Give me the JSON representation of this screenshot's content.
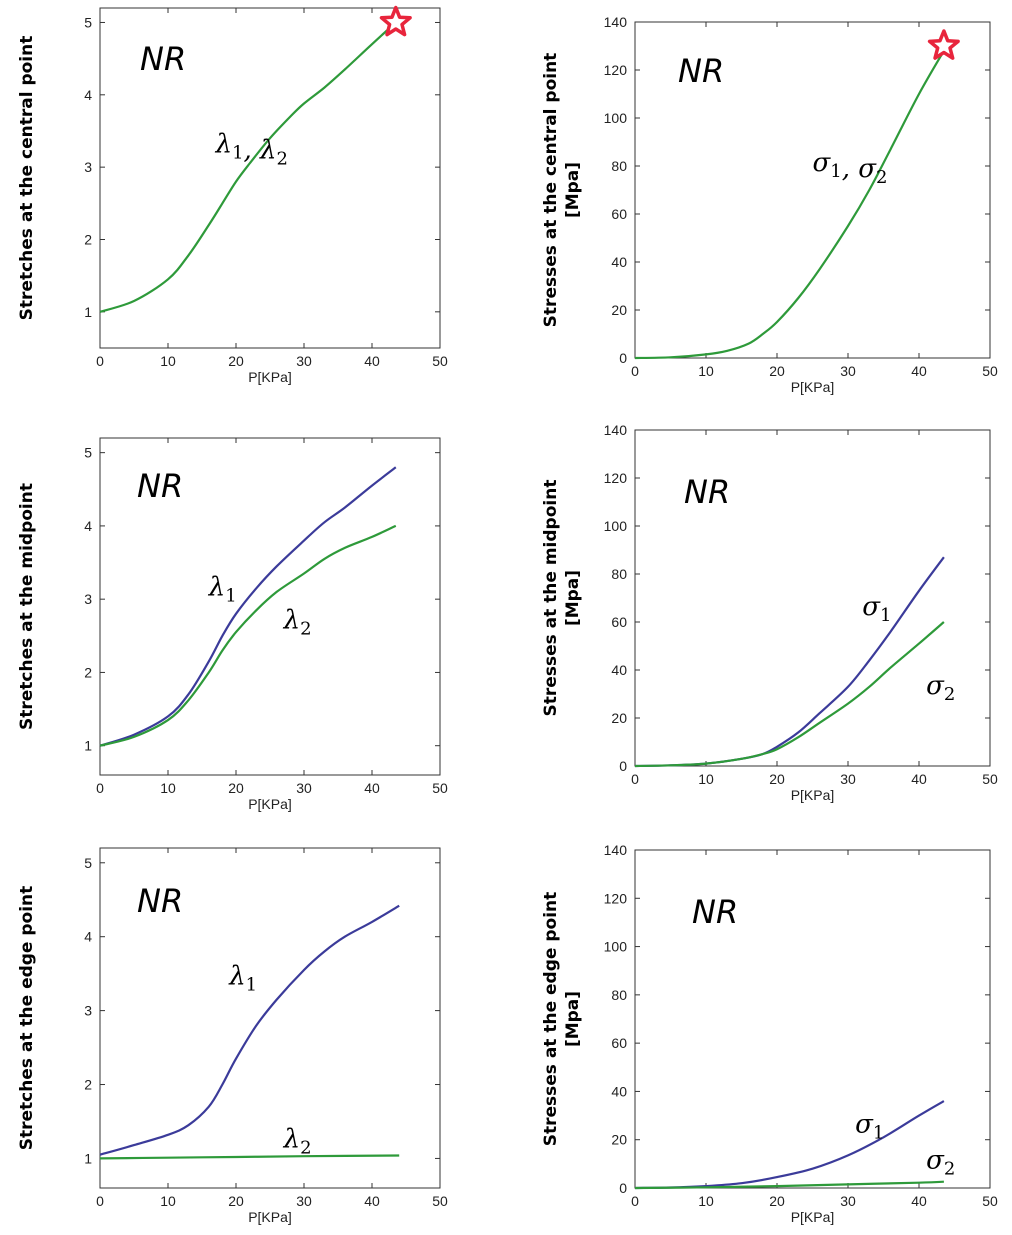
{
  "colors": {
    "lambda1": "#3b3b9a",
    "lambda2": "#2e9a3a",
    "star": "#e8253c",
    "axis": "#333333"
  },
  "chart_data": [
    {
      "type": "line",
      "ylabel": "Stretches at the central point",
      "xlabel": "P[KPa]",
      "xlim": [
        0,
        50
      ],
      "ylim": [
        0.5,
        5.2
      ],
      "xticks": [
        0,
        10,
        20,
        30,
        40,
        50
      ],
      "yticks": [
        1,
        2,
        3,
        4,
        5
      ],
      "model_label": "NR",
      "series": [
        {
          "color": "lambda2",
          "x": [
            0,
            5,
            10,
            13,
            16,
            18,
            20,
            22,
            25,
            28,
            30,
            33,
            36,
            40,
            43.5
          ],
          "y": [
            1.0,
            1.15,
            1.45,
            1.78,
            2.2,
            2.5,
            2.8,
            3.05,
            3.4,
            3.7,
            3.88,
            4.1,
            4.35,
            4.7,
            5.0
          ]
        }
      ],
      "annotations": [
        {
          "text": "λ₁, λ₂",
          "x": 17,
          "y": 3.2
        }
      ],
      "star": {
        "x": 43.5,
        "y": 5.0
      }
    },
    {
      "type": "line",
      "ylabel": "Stresses at the central point [Mpa]",
      "xlabel": "P[KPa]",
      "xlim": [
        0,
        50
      ],
      "ylim": [
        0,
        140
      ],
      "xticks": [
        0,
        10,
        20,
        30,
        40,
        50
      ],
      "yticks": [
        0,
        20,
        40,
        60,
        80,
        100,
        120,
        140
      ],
      "model_label": "NR",
      "series": [
        {
          "color": "lambda2",
          "x": [
            0,
            5,
            10,
            13,
            16,
            18,
            20,
            23,
            26,
            30,
            33,
            36,
            40,
            43.5
          ],
          "y": [
            0,
            0.3,
            1.5,
            3,
            6,
            10,
            15,
            25,
            37,
            55,
            70,
            87,
            110,
            128
          ]
        }
      ],
      "annotations": [
        {
          "text": "σ₁, σ₂",
          "x": 25,
          "y": 78
        }
      ],
      "star": {
        "x": 43.5,
        "y": 130
      }
    },
    {
      "type": "line",
      "ylabel": "Stretches at the midpoint",
      "xlabel": "P[KPa]",
      "xlim": [
        0,
        50
      ],
      "ylim": [
        0.6,
        5.2
      ],
      "xticks": [
        0,
        10,
        20,
        30,
        40,
        50
      ],
      "yticks": [
        1,
        2,
        3,
        4,
        5
      ],
      "model_label": "NR",
      "series": [
        {
          "color": "lambda1",
          "x": [
            0,
            5,
            10,
            13,
            16,
            18,
            20,
            23,
            26,
            30,
            33,
            36,
            40,
            43.5
          ],
          "y": [
            1.0,
            1.15,
            1.4,
            1.7,
            2.15,
            2.5,
            2.8,
            3.15,
            3.45,
            3.8,
            4.05,
            4.25,
            4.55,
            4.8
          ]
        },
        {
          "color": "lambda2",
          "x": [
            0,
            5,
            10,
            13,
            16,
            18,
            20,
            23,
            26,
            30,
            33,
            36,
            40,
            43.5
          ],
          "y": [
            1.0,
            1.12,
            1.35,
            1.62,
            2.0,
            2.3,
            2.55,
            2.85,
            3.1,
            3.35,
            3.55,
            3.7,
            3.85,
            4.0
          ]
        }
      ],
      "annotations": [
        {
          "text": "λ₁",
          "x": 16,
          "y": 3.05
        },
        {
          "text": "λ₂",
          "x": 27,
          "y": 2.6
        }
      ]
    },
    {
      "type": "line",
      "ylabel": "Stresses at the midpoint [Mpa]",
      "xlabel": "P[KPa]",
      "xlim": [
        0,
        50
      ],
      "ylim": [
        0,
        140
      ],
      "xticks": [
        0,
        10,
        20,
        30,
        40,
        50
      ],
      "yticks": [
        0,
        20,
        40,
        60,
        80,
        100,
        120,
        140
      ],
      "model_label": "NR",
      "series": [
        {
          "color": "lambda1",
          "x": [
            0,
            5,
            10,
            15,
            18,
            20,
            23,
            26,
            30,
            33,
            36,
            40,
            43.5
          ],
          "y": [
            0,
            0.3,
            1,
            3,
            5,
            8,
            14,
            22,
            33,
            44,
            56,
            73,
            87
          ]
        },
        {
          "color": "lambda2",
          "x": [
            0,
            5,
            10,
            15,
            18,
            20,
            23,
            26,
            30,
            33,
            36,
            40,
            43.5
          ],
          "y": [
            0,
            0.3,
            1,
            3,
            5,
            7,
            12,
            18,
            26,
            33,
            41,
            51,
            60
          ]
        }
      ],
      "annotations": [
        {
          "text": "σ₁",
          "x": 32,
          "y": 63
        },
        {
          "text": "σ₂",
          "x": 41,
          "y": 30
        }
      ]
    },
    {
      "type": "line",
      "ylabel": "Stretches at the edge point",
      "xlabel": "P[KPa]",
      "xlim": [
        0,
        50
      ],
      "ylim": [
        0.6,
        5.2
      ],
      "xticks": [
        0,
        10,
        20,
        30,
        40,
        50
      ],
      "yticks": [
        1,
        2,
        3,
        4,
        5
      ],
      "model_label": "NR",
      "series": [
        {
          "color": "lambda1",
          "x": [
            0,
            5,
            10,
            13,
            16,
            18,
            20,
            23,
            26,
            30,
            33,
            36,
            40,
            44
          ],
          "y": [
            1.05,
            1.18,
            1.32,
            1.45,
            1.7,
            2.0,
            2.35,
            2.8,
            3.15,
            3.55,
            3.8,
            4.0,
            4.2,
            4.42
          ]
        },
        {
          "color": "lambda2",
          "x": [
            0,
            10,
            20,
            30,
            44
          ],
          "y": [
            1.0,
            1.01,
            1.02,
            1.03,
            1.04
          ]
        }
      ],
      "annotations": [
        {
          "text": "λ₁",
          "x": 19,
          "y": 3.35
        },
        {
          "text": "λ₂",
          "x": 27,
          "y": 1.15
        }
      ]
    },
    {
      "type": "line",
      "ylabel": "Stresses at the edge point [Mpa]",
      "xlabel": "P[KPa]",
      "xlim": [
        0,
        50
      ],
      "ylim": [
        0,
        140
      ],
      "xticks": [
        0,
        10,
        20,
        30,
        40,
        50
      ],
      "yticks": [
        0,
        20,
        40,
        60,
        80,
        100,
        120,
        140
      ],
      "model_label": "NR",
      "series": [
        {
          "color": "lambda1",
          "x": [
            0,
            5,
            10,
            15,
            20,
            25,
            30,
            35,
            40,
            43.5
          ],
          "y": [
            0,
            0.2,
            0.8,
            2,
            4.5,
            8,
            13.5,
            21,
            30,
            36
          ]
        },
        {
          "color": "lambda2",
          "x": [
            0,
            10,
            20,
            30,
            40,
            43.5
          ],
          "y": [
            0,
            0.3,
            0.8,
            1.5,
            2.2,
            2.6
          ]
        }
      ],
      "annotations": [
        {
          "text": "σ₁",
          "x": 31,
          "y": 23
        },
        {
          "text": "σ₂",
          "x": 41,
          "y": 8
        }
      ]
    }
  ]
}
